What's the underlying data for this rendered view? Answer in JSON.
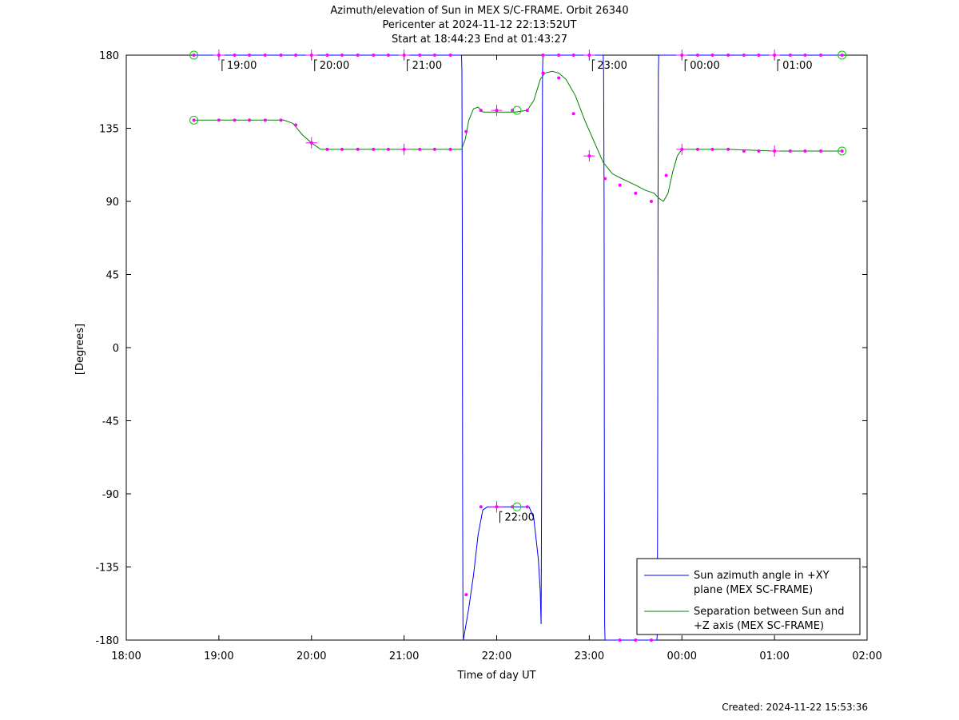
{
  "title_lines": [
    "Azimuth/elevation of Sun in MEX S/C-FRAME.  Orbit 26340",
    "Pericenter at 2024-11-12 22:13:52UT",
    "Start at 18:44:23 End at 01:43:27"
  ],
  "footer": "Created: 2024-11-22 15:53:36",
  "chart_data": {
    "type": "line",
    "xlabel": "Time of day UT",
    "ylabel": "[Degrees]",
    "x_unit": "hours since 18:00 UT",
    "xlim": [
      0,
      8
    ],
    "ylim": [
      -180,
      180
    ],
    "x_ticks": [
      {
        "value": 0,
        "label": "18:00"
      },
      {
        "value": 1,
        "label": "19:00"
      },
      {
        "value": 2,
        "label": "20:00"
      },
      {
        "value": 3,
        "label": "21:00"
      },
      {
        "value": 4,
        "label": "22:00"
      },
      {
        "value": 5,
        "label": "23:00"
      },
      {
        "value": 6,
        "label": "00:00"
      },
      {
        "value": 7,
        "label": "01:00"
      },
      {
        "value": 8,
        "label": "02:00"
      }
    ],
    "y_ticks": [
      {
        "value": 180,
        "label": "180"
      },
      {
        "value": 135,
        "label": "135"
      },
      {
        "value": 90,
        "label": "90"
      },
      {
        "value": 45,
        "label": "45"
      },
      {
        "value": 0,
        "label": "0"
      },
      {
        "value": -45,
        "label": "-45"
      },
      {
        "value": -90,
        "label": "-90"
      },
      {
        "value": -135,
        "label": "-135"
      },
      {
        "value": -180,
        "label": "-180"
      }
    ],
    "legend_position": "bottom-right",
    "series": [
      {
        "name": "Sun azimuth angle in +XY plane (MEX SC-FRAME)",
        "legend_lines": [
          "Sun azimuth angle in +XY",
          "plane (MEX SC-FRAME)"
        ],
        "color": "#0000ff",
        "segments": [
          [
            [
              0.73,
              180
            ],
            [
              3.62,
              180
            ],
            [
              3.625,
              170
            ],
            [
              3.628,
              90
            ],
            [
              3.632,
              -90
            ],
            [
              3.636,
              -170
            ],
            [
              3.64,
              -180
            ]
          ],
          [
            [
              3.64,
              -180
            ],
            [
              3.7,
              -160
            ],
            [
              3.75,
              -140
            ],
            [
              3.8,
              -115
            ],
            [
              3.85,
              -100
            ],
            [
              3.9,
              -98
            ],
            [
              4.0,
              -98
            ],
            [
              4.2,
              -98
            ],
            [
              4.35,
              -98
            ],
            [
              4.4,
              -105
            ],
            [
              4.45,
              -130
            ],
            [
              4.47,
              -150
            ],
            [
              4.48,
              -170
            ]
          ],
          [
            [
              4.48,
              -170
            ],
            [
              4.485,
              -90
            ],
            [
              4.49,
              90
            ],
            [
              4.495,
              170
            ],
            [
              4.5,
              180
            ],
            [
              5.15,
              180
            ],
            [
              5.155,
              170
            ],
            [
              5.16,
              90
            ],
            [
              5.163,
              -90
            ],
            [
              5.166,
              -170
            ],
            [
              5.17,
              -180
            ]
          ],
          [
            [
              5.17,
              -180
            ],
            [
              5.73,
              -180
            ],
            [
              5.735,
              -175
            ],
            [
              5.738,
              -90
            ],
            [
              5.742,
              90
            ],
            [
              5.746,
              170
            ],
            [
              5.75,
              180
            ],
            [
              7.73,
              180
            ]
          ]
        ],
        "markers": [
          [
            0.73,
            180
          ],
          [
            1.0,
            180
          ],
          [
            1.17,
            180
          ],
          [
            1.33,
            180
          ],
          [
            1.5,
            180
          ],
          [
            1.67,
            180
          ],
          [
            1.83,
            180
          ],
          [
            2.0,
            180
          ],
          [
            2.17,
            180
          ],
          [
            2.33,
            180
          ],
          [
            2.5,
            180
          ],
          [
            2.67,
            180
          ],
          [
            2.83,
            180
          ],
          [
            3.0,
            180
          ],
          [
            3.17,
            180
          ],
          [
            3.33,
            180
          ],
          [
            3.5,
            180
          ],
          [
            3.67,
            -152
          ],
          [
            3.83,
            -98
          ],
          [
            4.0,
            -98
          ],
          [
            4.17,
            -98
          ],
          [
            4.33,
            -98
          ],
          [
            4.5,
            180
          ],
          [
            4.67,
            180
          ],
          [
            4.83,
            180
          ],
          [
            5.0,
            180
          ],
          [
            5.33,
            -180
          ],
          [
            5.5,
            -180
          ],
          [
            5.67,
            -180
          ],
          [
            6.0,
            180
          ],
          [
            6.17,
            180
          ],
          [
            6.33,
            180
          ],
          [
            6.5,
            180
          ],
          [
            6.67,
            180
          ],
          [
            6.83,
            180
          ],
          [
            7.0,
            180
          ],
          [
            7.17,
            180
          ],
          [
            7.33,
            180
          ],
          [
            7.5,
            180
          ],
          [
            7.73,
            180
          ]
        ]
      },
      {
        "name": "Separation between Sun and +Z axis (MEX SC-FRAME)",
        "legend_lines": [
          "Separation between Sun and",
          "+Z axis (MEX SC-FRAME)"
        ],
        "color": "#008000",
        "segments": [
          [
            [
              0.73,
              140
            ],
            [
              1.0,
              140
            ],
            [
              1.5,
              140
            ],
            [
              1.7,
              140
            ],
            [
              1.8,
              138
            ],
            [
              1.9,
              131
            ],
            [
              2.0,
              126
            ],
            [
              2.1,
              122
            ],
            [
              2.2,
              122
            ],
            [
              2.5,
              122
            ],
            [
              3.0,
              122
            ],
            [
              3.5,
              122
            ],
            [
              3.62,
              122
            ],
            [
              3.66,
              128
            ],
            [
              3.7,
              140
            ],
            [
              3.75,
              147
            ],
            [
              3.8,
              148
            ],
            [
              3.85,
              145
            ],
            [
              4.0,
              145
            ],
            [
              4.2,
              145
            ],
            [
              4.33,
              146
            ],
            [
              4.4,
              152
            ],
            [
              4.47,
              165
            ],
            [
              4.52,
              169
            ],
            [
              4.6,
              170
            ],
            [
              4.67,
              169
            ],
            [
              4.75,
              165
            ],
            [
              4.85,
              155
            ],
            [
              4.95,
              140
            ],
            [
              5.05,
              127
            ],
            [
              5.15,
              114
            ],
            [
              5.25,
              107
            ],
            [
              5.35,
              104
            ],
            [
              5.5,
              100
            ],
            [
              5.6,
              97
            ],
            [
              5.7,
              95
            ],
            [
              5.75,
              92
            ],
            [
              5.8,
              90
            ],
            [
              5.85,
              95
            ],
            [
              5.9,
              108
            ],
            [
              5.95,
              118
            ],
            [
              6.0,
              122
            ],
            [
              6.2,
              122
            ],
            [
              6.5,
              122
            ],
            [
              7.0,
              121
            ],
            [
              7.5,
              121
            ],
            [
              7.73,
              121
            ]
          ]
        ],
        "markers": [
          [
            0.73,
            140
          ],
          [
            1.0,
            140
          ],
          [
            1.17,
            140
          ],
          [
            1.33,
            140
          ],
          [
            1.5,
            140
          ],
          [
            1.67,
            140
          ],
          [
            1.83,
            137
          ],
          [
            2.0,
            126
          ],
          [
            2.17,
            122
          ],
          [
            2.33,
            122
          ],
          [
            2.5,
            122
          ],
          [
            2.67,
            122
          ],
          [
            2.83,
            122
          ],
          [
            3.0,
            122
          ],
          [
            3.17,
            122
          ],
          [
            3.33,
            122
          ],
          [
            3.5,
            122
          ],
          [
            3.67,
            133
          ],
          [
            3.83,
            146
          ],
          [
            4.0,
            146
          ],
          [
            4.17,
            146
          ],
          [
            4.33,
            146
          ],
          [
            4.5,
            169
          ],
          [
            4.67,
            166
          ],
          [
            4.83,
            144
          ],
          [
            5.0,
            118
          ],
          [
            5.17,
            104
          ],
          [
            5.33,
            100
          ],
          [
            5.5,
            95
          ],
          [
            5.67,
            90
          ],
          [
            5.83,
            106
          ],
          [
            6.0,
            122
          ],
          [
            6.17,
            122
          ],
          [
            6.33,
            122
          ],
          [
            6.5,
            122
          ],
          [
            6.67,
            121
          ],
          [
            6.83,
            121
          ],
          [
            7.0,
            121
          ],
          [
            7.17,
            121
          ],
          [
            7.33,
            121
          ],
          [
            7.5,
            121
          ],
          [
            7.73,
            121
          ]
        ]
      }
    ],
    "annotations": [
      {
        "label": "19:00",
        "x": 1.0,
        "y": 180
      },
      {
        "label": "20:00",
        "x": 2.0,
        "y": 180
      },
      {
        "label": "21:00",
        "x": 3.0,
        "y": 180
      },
      {
        "label": "22:00",
        "x": 4.0,
        "y": -98
      },
      {
        "label": "23:00",
        "x": 5.0,
        "y": 180
      },
      {
        "label": "00:00",
        "x": 6.0,
        "y": 180
      },
      {
        "label": "01:00",
        "x": 7.0,
        "y": 180
      }
    ],
    "large_ticks": [
      [
        1.0,
        180
      ],
      [
        2.0,
        180
      ],
      [
        3.0,
        180
      ],
      [
        4.0,
        -98
      ],
      [
        5.0,
        180
      ],
      [
        6.0,
        180
      ],
      [
        7.0,
        180
      ],
      [
        2.0,
        126
      ],
      [
        3.0,
        122
      ],
      [
        4.0,
        146
      ],
      [
        5.0,
        118
      ],
      [
        6.0,
        122
      ],
      [
        7.0,
        121
      ]
    ],
    "circles": [
      [
        0.73,
        180
      ],
      [
        7.73,
        180
      ],
      [
        0.73,
        140
      ],
      [
        7.73,
        121
      ],
      [
        4.22,
        146
      ],
      [
        4.22,
        -98
      ]
    ]
  }
}
